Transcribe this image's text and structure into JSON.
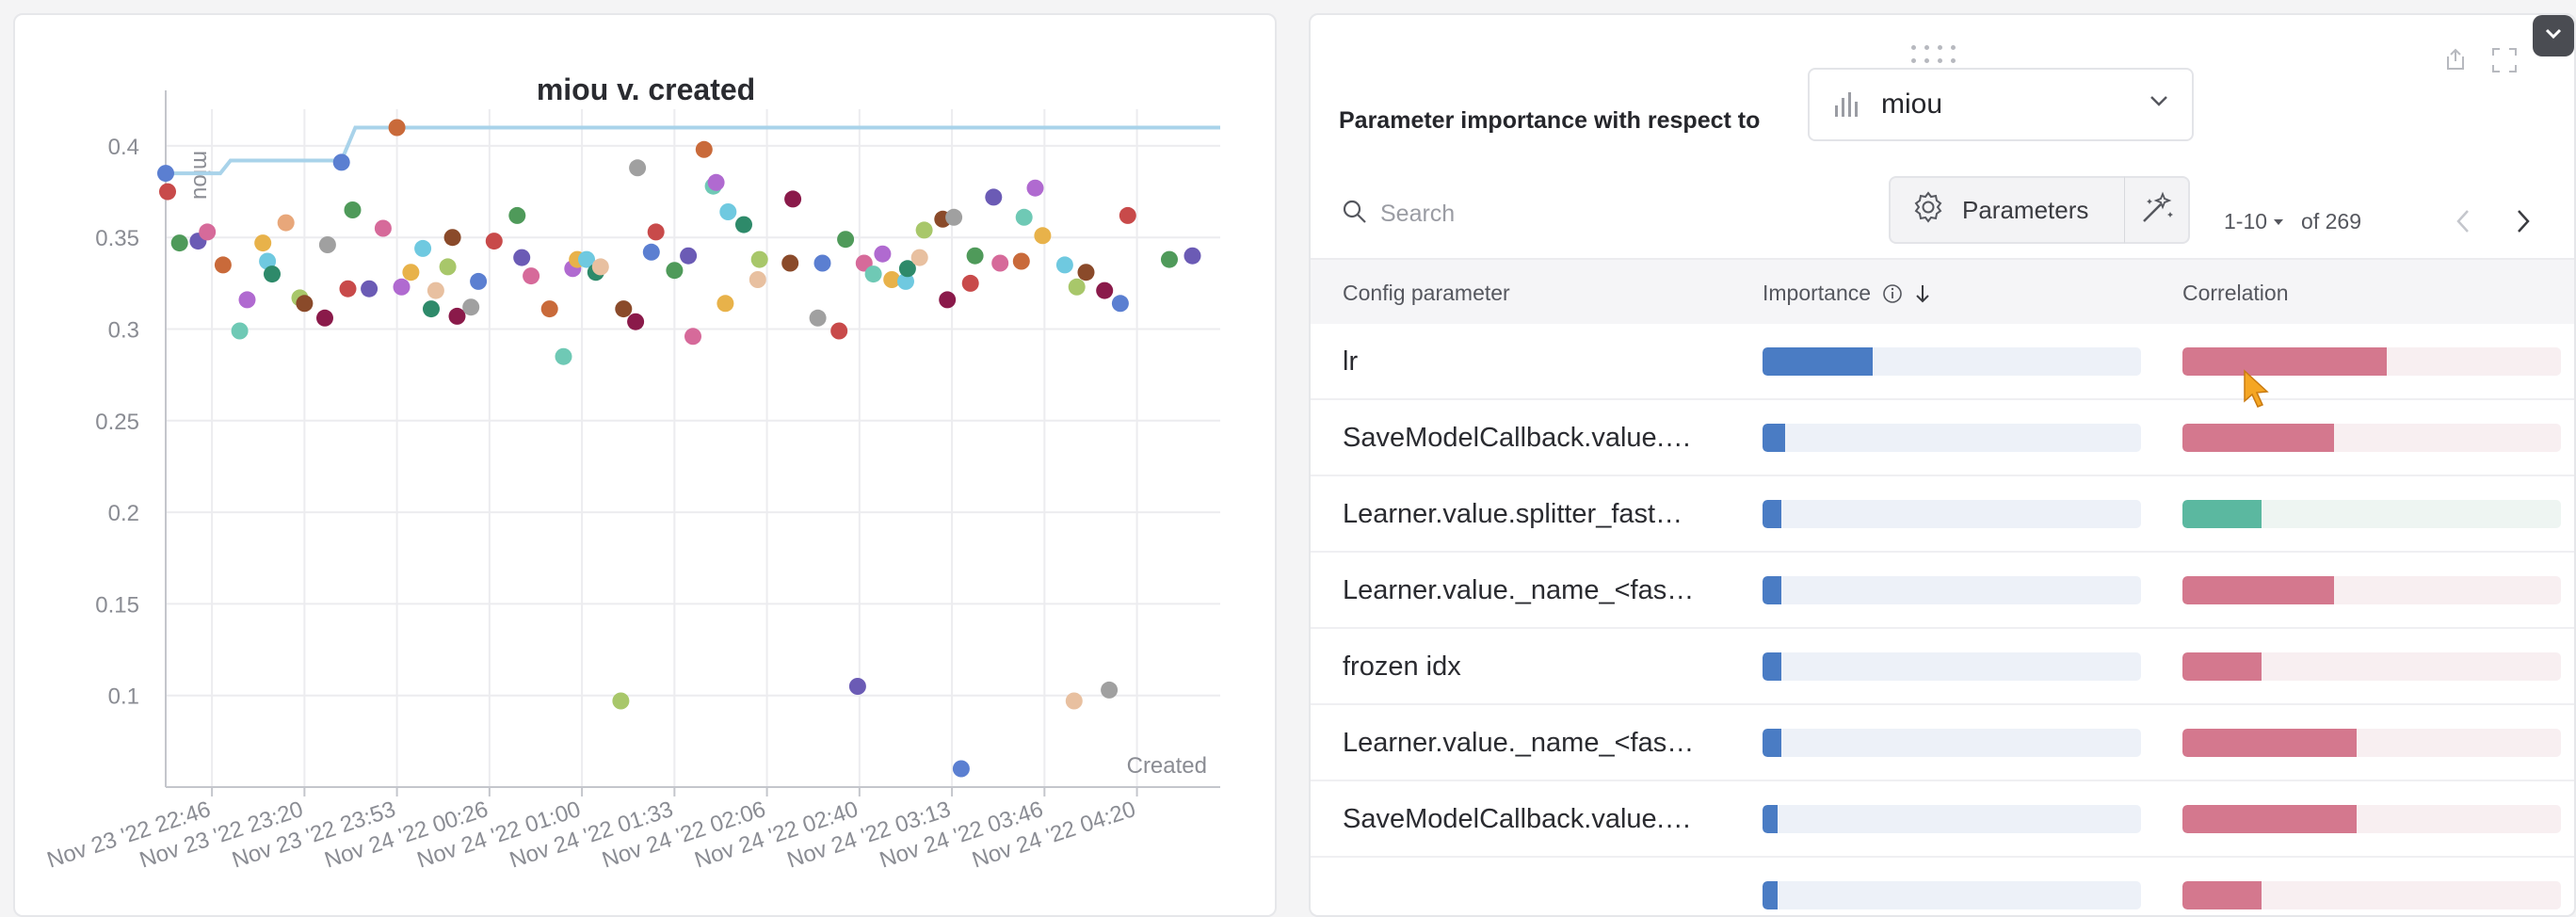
{
  "chart": {
    "title": "miou v. created",
    "ylabel": "miou",
    "xlabel": "Created"
  },
  "chart_data": {
    "type": "scatter",
    "title": "miou v. created",
    "xlabel": "Created",
    "ylabel": "miou",
    "ylim": [
      0.05,
      0.42
    ],
    "x_tick_labels": [
      "Nov 23 '22 22:46",
      "Nov 23 '22 23:20",
      "Nov 23 '22 23:53",
      "Nov 24 '22 00:26",
      "Nov 24 '22 01:00",
      "Nov 24 '22 01:33",
      "Nov 24 '22 02:06",
      "Nov 24 '22 02:40",
      "Nov 24 '22 03:13",
      "Nov 24 '22 03:46",
      "Nov 24 '22 04:20"
    ],
    "y_ticks": [
      0.1,
      0.15,
      0.2,
      0.25,
      0.3,
      0.35,
      0.4
    ],
    "y_tick_labels": [
      "0.1",
      "0.15",
      "0.2",
      "0.25",
      "0.3",
      "0.35",
      "0.4"
    ],
    "grid": true,
    "best_line": [
      {
        "t": 0.0,
        "y": 0.385
      },
      {
        "t": 0.59,
        "y": 0.385
      },
      {
        "t": 0.7,
        "y": 0.392
      },
      {
        "t": 1.9,
        "y": 0.392
      },
      {
        "t": 2.05,
        "y": 0.41
      },
      {
        "t": 11.4,
        "y": 0.41
      }
    ],
    "points": [
      {
        "t": 0.0,
        "y": 0.385,
        "c": "#5b7fd1"
      },
      {
        "t": 0.02,
        "y": 0.375,
        "c": "#c84a4a"
      },
      {
        "t": 0.15,
        "y": 0.347,
        "c": "#4f9a5a"
      },
      {
        "t": 0.35,
        "y": 0.348,
        "c": "#6b5bb5"
      },
      {
        "t": 0.45,
        "y": 0.353,
        "c": "#d66a9a"
      },
      {
        "t": 0.62,
        "y": 0.335,
        "c": "#c96a3a"
      },
      {
        "t": 0.8,
        "y": 0.299,
        "c": "#6fc9b5"
      },
      {
        "t": 0.88,
        "y": 0.316,
        "c": "#b06ad0"
      },
      {
        "t": 1.05,
        "y": 0.347,
        "c": "#e8b24a"
      },
      {
        "t": 1.1,
        "y": 0.337,
        "c": "#6fc9e0"
      },
      {
        "t": 1.15,
        "y": 0.33,
        "c": "#2e8a6a"
      },
      {
        "t": 1.3,
        "y": 0.358,
        "c": "#e8a77a"
      },
      {
        "t": 1.45,
        "y": 0.317,
        "c": "#a8c76a"
      },
      {
        "t": 1.5,
        "y": 0.314,
        "c": "#8a4a2a"
      },
      {
        "t": 1.72,
        "y": 0.306,
        "c": "#8a1a4a"
      },
      {
        "t": 1.75,
        "y": 0.346,
        "c": "#a0a0a0"
      },
      {
        "t": 1.9,
        "y": 0.391,
        "c": "#5b7fd1"
      },
      {
        "t": 1.97,
        "y": 0.322,
        "c": "#c84a4a"
      },
      {
        "t": 2.02,
        "y": 0.365,
        "c": "#4f9a5a"
      },
      {
        "t": 2.2,
        "y": 0.322,
        "c": "#6b5bb5"
      },
      {
        "t": 2.35,
        "y": 0.355,
        "c": "#d66a9a"
      },
      {
        "t": 2.5,
        "y": 0.41,
        "c": "#c96a3a"
      },
      {
        "t": 2.55,
        "y": 0.323,
        "c": "#b06ad0"
      },
      {
        "t": 2.65,
        "y": 0.331,
        "c": "#e8b24a"
      },
      {
        "t": 2.78,
        "y": 0.344,
        "c": "#6fc9e0"
      },
      {
        "t": 2.87,
        "y": 0.311,
        "c": "#2e8a6a"
      },
      {
        "t": 2.92,
        "y": 0.321,
        "c": "#e8c0a0"
      },
      {
        "t": 3.05,
        "y": 0.334,
        "c": "#a8c76a"
      },
      {
        "t": 3.1,
        "y": 0.35,
        "c": "#8a4a2a"
      },
      {
        "t": 3.15,
        "y": 0.307,
        "c": "#8a1a4a"
      },
      {
        "t": 3.3,
        "y": 0.312,
        "c": "#a0a0a0"
      },
      {
        "t": 3.38,
        "y": 0.326,
        "c": "#5b7fd1"
      },
      {
        "t": 3.55,
        "y": 0.348,
        "c": "#c84a4a"
      },
      {
        "t": 3.8,
        "y": 0.362,
        "c": "#4f9a5a"
      },
      {
        "t": 3.85,
        "y": 0.339,
        "c": "#6b5bb5"
      },
      {
        "t": 3.95,
        "y": 0.329,
        "c": "#d66a9a"
      },
      {
        "t": 4.15,
        "y": 0.311,
        "c": "#c96a3a"
      },
      {
        "t": 4.3,
        "y": 0.285,
        "c": "#6fc9b5"
      },
      {
        "t": 4.4,
        "y": 0.333,
        "c": "#b06ad0"
      },
      {
        "t": 4.45,
        "y": 0.338,
        "c": "#e8b24a"
      },
      {
        "t": 4.55,
        "y": 0.338,
        "c": "#6fc9e0"
      },
      {
        "t": 4.65,
        "y": 0.331,
        "c": "#2e8a6a"
      },
      {
        "t": 4.7,
        "y": 0.334,
        "c": "#e8c0a0"
      },
      {
        "t": 4.92,
        "y": 0.097,
        "c": "#a8c76a"
      },
      {
        "t": 4.95,
        "y": 0.311,
        "c": "#8a4a2a"
      },
      {
        "t": 5.08,
        "y": 0.304,
        "c": "#8a1a4a"
      },
      {
        "t": 5.1,
        "y": 0.388,
        "c": "#a0a0a0"
      },
      {
        "t": 5.25,
        "y": 0.342,
        "c": "#5b7fd1"
      },
      {
        "t": 5.3,
        "y": 0.353,
        "c": "#c84a4a"
      },
      {
        "t": 5.5,
        "y": 0.332,
        "c": "#4f9a5a"
      },
      {
        "t": 5.65,
        "y": 0.34,
        "c": "#6b5bb5"
      },
      {
        "t": 5.7,
        "y": 0.296,
        "c": "#d66a9a"
      },
      {
        "t": 5.82,
        "y": 0.398,
        "c": "#c96a3a"
      },
      {
        "t": 5.92,
        "y": 0.378,
        "c": "#6fc9b5"
      },
      {
        "t": 5.95,
        "y": 0.38,
        "c": "#b06ad0"
      },
      {
        "t": 6.05,
        "y": 0.314,
        "c": "#e8b24a"
      },
      {
        "t": 6.08,
        "y": 0.364,
        "c": "#6fc9e0"
      },
      {
        "t": 6.25,
        "y": 0.357,
        "c": "#2e8a6a"
      },
      {
        "t": 6.4,
        "y": 0.327,
        "c": "#e8c0a0"
      },
      {
        "t": 6.42,
        "y": 0.338,
        "c": "#a8c76a"
      },
      {
        "t": 6.75,
        "y": 0.336,
        "c": "#8a4a2a"
      },
      {
        "t": 6.78,
        "y": 0.371,
        "c": "#8a1a4a"
      },
      {
        "t": 7.05,
        "y": 0.306,
        "c": "#a0a0a0"
      },
      {
        "t": 7.1,
        "y": 0.336,
        "c": "#5b7fd1"
      },
      {
        "t": 7.28,
        "y": 0.299,
        "c": "#c84a4a"
      },
      {
        "t": 7.35,
        "y": 0.349,
        "c": "#4f9a5a"
      },
      {
        "t": 7.48,
        "y": 0.105,
        "c": "#6b5bb5"
      },
      {
        "t": 7.55,
        "y": 0.336,
        "c": "#d66a9a"
      },
      {
        "t": 7.65,
        "y": 0.33,
        "c": "#6fc9b5"
      },
      {
        "t": 7.75,
        "y": 0.341,
        "c": "#b06ad0"
      },
      {
        "t": 7.85,
        "y": 0.327,
        "c": "#e8b24a"
      },
      {
        "t": 8.0,
        "y": 0.326,
        "c": "#6fc9e0"
      },
      {
        "t": 8.02,
        "y": 0.333,
        "c": "#2e8a6a"
      },
      {
        "t": 8.15,
        "y": 0.339,
        "c": "#e8c0a0"
      },
      {
        "t": 8.2,
        "y": 0.354,
        "c": "#a8c76a"
      },
      {
        "t": 8.4,
        "y": 0.36,
        "c": "#8a4a2a"
      },
      {
        "t": 8.45,
        "y": 0.316,
        "c": "#8a1a4a"
      },
      {
        "t": 8.52,
        "y": 0.361,
        "c": "#a0a0a0"
      },
      {
        "t": 8.6,
        "y": 0.06,
        "c": "#5b7fd1"
      },
      {
        "t": 8.7,
        "y": 0.325,
        "c": "#c84a4a"
      },
      {
        "t": 8.75,
        "y": 0.34,
        "c": "#4f9a5a"
      },
      {
        "t": 8.95,
        "y": 0.372,
        "c": "#6b5bb5"
      },
      {
        "t": 9.02,
        "y": 0.336,
        "c": "#d66a9a"
      },
      {
        "t": 9.25,
        "y": 0.337,
        "c": "#c96a3a"
      },
      {
        "t": 9.28,
        "y": 0.361,
        "c": "#6fc9b5"
      },
      {
        "t": 9.4,
        "y": 0.377,
        "c": "#b06ad0"
      },
      {
        "t": 9.48,
        "y": 0.351,
        "c": "#e8b24a"
      },
      {
        "t": 9.72,
        "y": 0.335,
        "c": "#6fc9e0"
      },
      {
        "t": 9.82,
        "y": 0.097,
        "c": "#e8c0a0"
      },
      {
        "t": 9.85,
        "y": 0.323,
        "c": "#a8c76a"
      },
      {
        "t": 9.95,
        "y": 0.331,
        "c": "#8a4a2a"
      },
      {
        "t": 10.15,
        "y": 0.321,
        "c": "#8a1a4a"
      },
      {
        "t": 10.2,
        "y": 0.103,
        "c": "#a0a0a0"
      },
      {
        "t": 10.32,
        "y": 0.314,
        "c": "#5b7fd1"
      },
      {
        "t": 10.4,
        "y": 0.362,
        "c": "#c84a4a"
      },
      {
        "t": 10.85,
        "y": 0.338,
        "c": "#4f9a5a"
      },
      {
        "t": 11.1,
        "y": 0.34,
        "c": "#6b5bb5"
      }
    ]
  },
  "panel": {
    "title": "Parameter importance with respect to",
    "metric": "miou",
    "search_placeholder": "Search",
    "parameters_button": "Parameters",
    "range": "1-10",
    "of_total": "of 269",
    "columns": {
      "config": "Config parameter",
      "importance": "Importance",
      "correlation": "Correlation"
    },
    "rows": [
      {
        "name": "lr",
        "importance": 0.29,
        "correlation": 0.54,
        "corr_color": "#d4788e"
      },
      {
        "name": "SaveModelCallback.value.…",
        "importance": 0.06,
        "correlation": 0.4,
        "corr_color": "#d4788e"
      },
      {
        "name": "Learner.value.splitter_fast…",
        "importance": 0.05,
        "correlation": 0.21,
        "corr_color": "#5bb8a0"
      },
      {
        "name": "Learner.value._name_<fas…",
        "importance": 0.05,
        "correlation": 0.4,
        "corr_color": "#d4788e"
      },
      {
        "name": "frozen idx",
        "importance": 0.05,
        "correlation": 0.21,
        "corr_color": "#d4788e"
      },
      {
        "name": "Learner.value._name_<fas…",
        "importance": 0.05,
        "correlation": 0.46,
        "corr_color": "#d4788e"
      },
      {
        "name": "SaveModelCallback.value.…",
        "importance": 0.04,
        "correlation": 0.46,
        "corr_color": "#d4788e"
      },
      {
        "name": "",
        "importance": 0.04,
        "correlation": 0.21,
        "corr_color": "#d4788e"
      }
    ]
  }
}
